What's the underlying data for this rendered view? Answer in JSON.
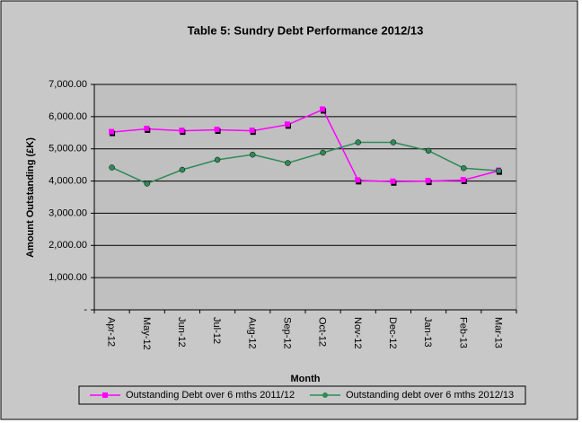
{
  "chart_data": {
    "type": "line",
    "title": "Table 5: Sundry Debt Performance 2012/13",
    "x_label": "Month",
    "y_label": "Amount Outstanding (£K)",
    "categories": [
      "Apr-12",
      "May-12",
      "Jun-12",
      "Jul-12",
      "Aug-12",
      "Sep-12",
      "Oct-12",
      "Nov-12",
      "Dec-12",
      "Jan-13",
      "Feb-13",
      "Mar-13"
    ],
    "series": [
      {
        "name": "Outstanding Debt over 6 mths 2011/12",
        "color": "#ff00ff",
        "marker": "square",
        "values": [
          5520,
          5620,
          5560,
          5590,
          5560,
          5750,
          6220,
          4020,
          3980,
          4000,
          4030,
          4320
        ]
      },
      {
        "name": "Outstanding debt over 6 mths 2012/13",
        "color": "#2e8b57",
        "marker": "circle",
        "values": [
          4420,
          3920,
          4350,
          4660,
          4820,
          4560,
          4880,
          5200,
          5200,
          4940,
          4400,
          4320
        ]
      }
    ],
    "ylim": [
      0,
      7000
    ],
    "yticks": [
      {
        "value": 0,
        "label": "-"
      },
      {
        "value": 1000,
        "label": "1,000.00"
      },
      {
        "value": 2000,
        "label": "2,000.00"
      },
      {
        "value": 3000,
        "label": "3,000.00"
      },
      {
        "value": 4000,
        "label": "4,000.00"
      },
      {
        "value": 5000,
        "label": "5,000.00"
      },
      {
        "value": 6000,
        "label": "6,000.00"
      },
      {
        "value": 7000,
        "label": "7,000.00"
      }
    ],
    "grid": true,
    "legend": "bottom"
  }
}
